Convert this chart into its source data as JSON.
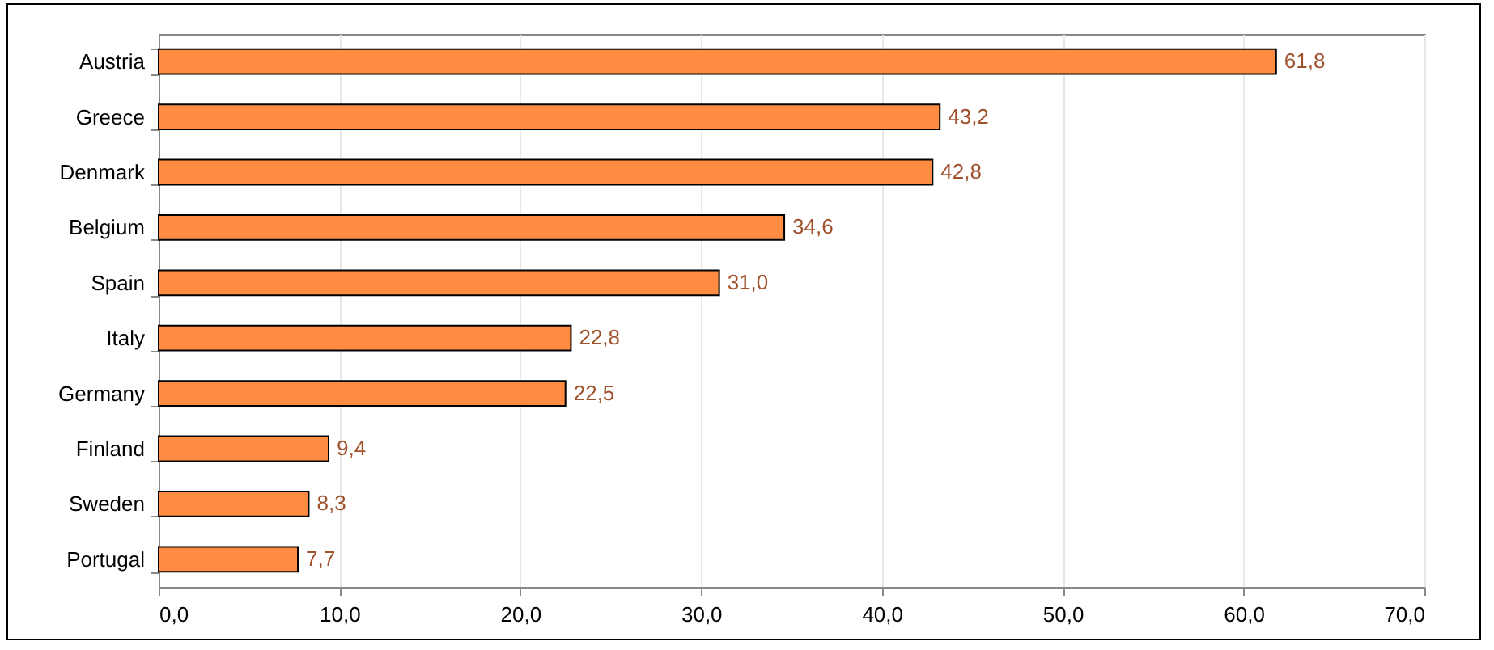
{
  "chart_data": {
    "type": "bar",
    "orientation": "horizontal",
    "categories": [
      "Austria",
      "Greece",
      "Denmark",
      "Belgium",
      "Spain",
      "Italy",
      "Germany",
      "Finland",
      "Sweden",
      "Portugal"
    ],
    "values": [
      61.8,
      43.2,
      42.8,
      34.6,
      31.0,
      22.8,
      22.5,
      9.4,
      8.3,
      7.7
    ],
    "value_labels": [
      "61,8",
      "43,2",
      "42,8",
      "34,6",
      "31,0",
      "22,8",
      "22,5",
      "9,4",
      "8,3",
      "7,7"
    ],
    "color": "#ff8c40",
    "xlim": [
      0,
      70
    ],
    "xticks": [
      {
        "value": 0,
        "label": "0,0"
      },
      {
        "value": 10,
        "label": "10,0"
      },
      {
        "value": 20,
        "label": "20,0"
      },
      {
        "value": 30,
        "label": "30,0"
      },
      {
        "value": 40,
        "label": "40,0"
      },
      {
        "value": 50,
        "label": "50,0"
      },
      {
        "value": 60,
        "label": "60,0"
      },
      {
        "value": 70,
        "label": "70,0"
      }
    ],
    "grid": "x"
  }
}
